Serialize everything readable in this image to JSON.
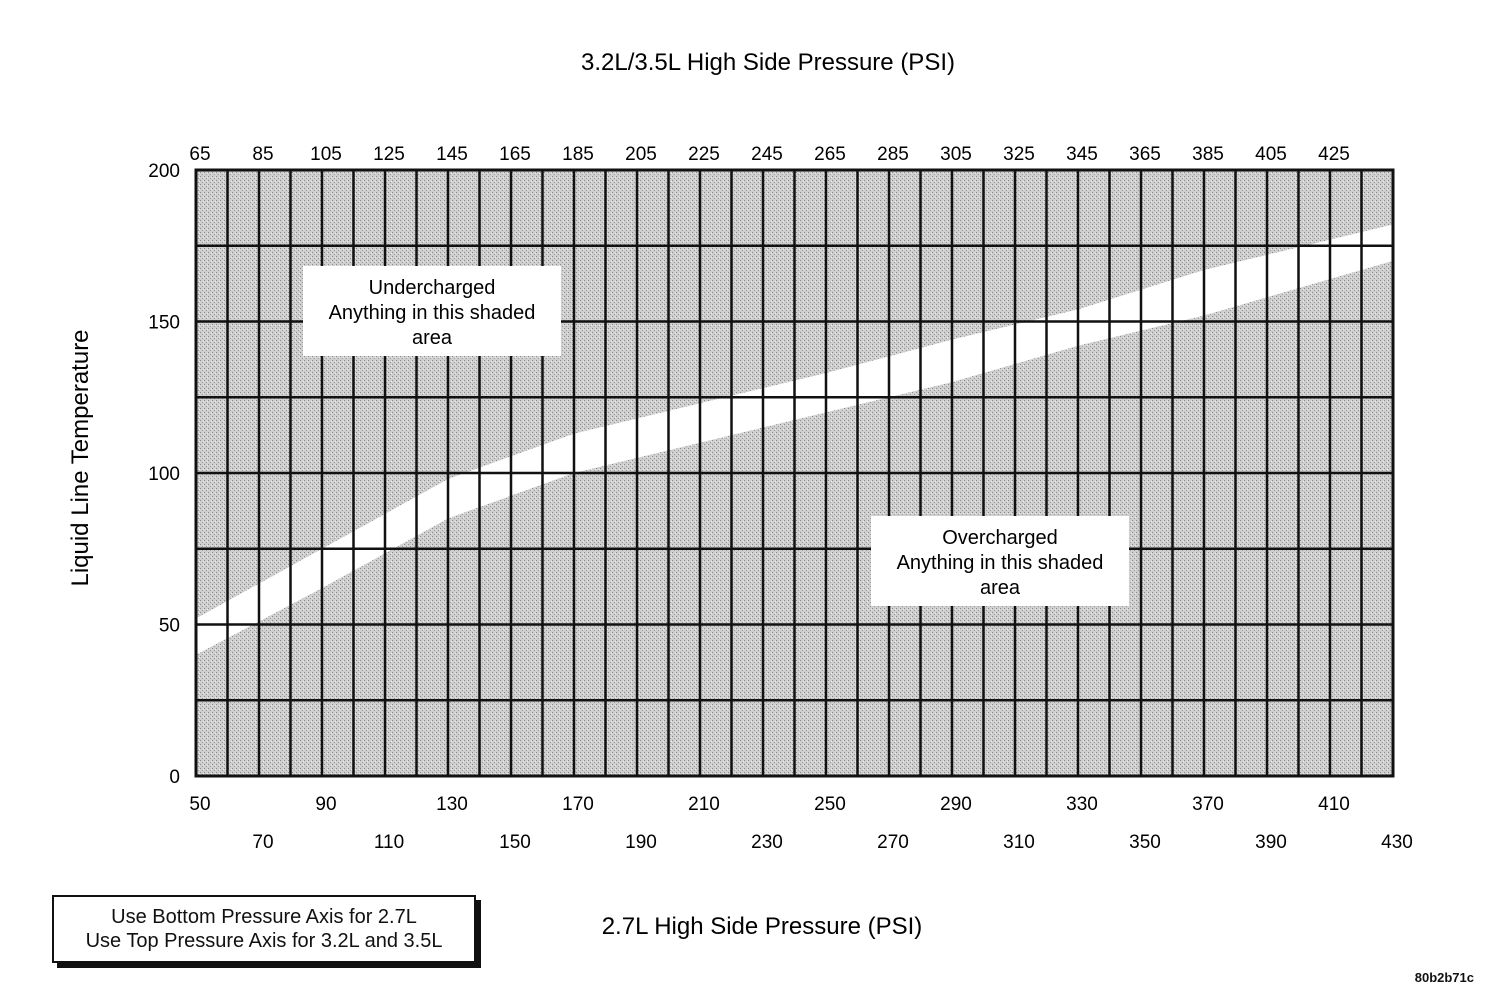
{
  "chart_data": {
    "type": "area",
    "title": "3.2L/3.5L High Side Pressure (PSI)",
    "xlabel": "2.7L High Side Pressure (PSI)",
    "ylabel": "Liquid Line Temperature",
    "x_bottom": {
      "label": "2.7L High Side Pressure (PSI)",
      "range": [
        50,
        430
      ],
      "ticks_upper": [
        50,
        90,
        130,
        170,
        210,
        250,
        290,
        330,
        370,
        410
      ],
      "ticks_lower": [
        70,
        110,
        150,
        190,
        230,
        270,
        310,
        350,
        390,
        430
      ]
    },
    "x_top": {
      "label": "3.2L/3.5L High Side Pressure (PSI)",
      "ticks": [
        65,
        85,
        105,
        125,
        145,
        165,
        185,
        205,
        225,
        245,
        265,
        285,
        305,
        325,
        345,
        365,
        385,
        405,
        425
      ]
    },
    "y": {
      "range": [
        0,
        200
      ],
      "ticks": [
        0,
        50,
        100,
        150,
        200
      ]
    },
    "grid": true,
    "regions": [
      {
        "name": "Undercharged",
        "text": [
          "Undercharged",
          "Anything in this shaded",
          "area"
        ],
        "boundary": {
          "x": [
            50,
            90,
            130,
            170,
            210,
            250,
            290,
            330,
            370,
            430
          ],
          "y": [
            52,
            75,
            98,
            113,
            123,
            133,
            144,
            154,
            167,
            182
          ]
        }
      },
      {
        "name": "Overcharged",
        "text": [
          "Overcharged",
          "Anything in this shaded",
          "area"
        ],
        "boundary": {
          "x": [
            50,
            90,
            130,
            170,
            210,
            250,
            290,
            330,
            370,
            430
          ],
          "y": [
            40,
            62,
            85,
            100,
            110,
            120,
            130,
            142,
            152,
            170
          ]
        }
      }
    ]
  },
  "legend_box": {
    "line1": "Use Bottom Pressure Axis for 2.7L",
    "line2": "Use Top Pressure Axis for 3.2L and 3.5L"
  },
  "image_id": "80b2b71c"
}
